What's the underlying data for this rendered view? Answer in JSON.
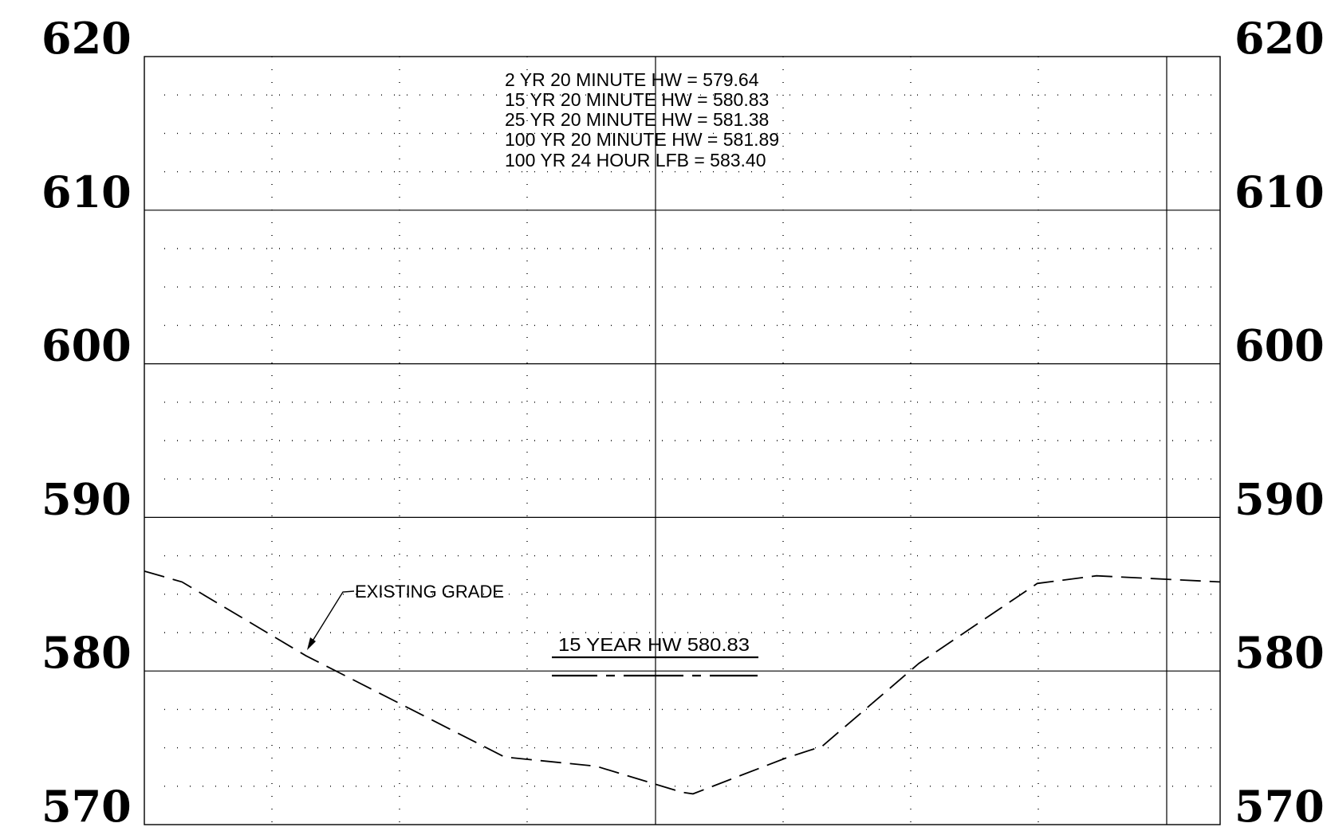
{
  "elevation_labels": [
    "620",
    "610",
    "600",
    "590",
    "580",
    "570"
  ],
  "headwater_notes": [
    "2 YR 20 MINUTE HW = 579.64",
    "15 YR 20 MINUTE HW = 580.83",
    "25 YR 20 MINUTE HW = 581.38",
    "100 YR 20 MINUTE HW = 581.89",
    "100 YR 24 HOUR LFB = 583.40"
  ],
  "profile_label": "EXISTING GRADE",
  "hw_label": "15 YEAR HW 580.83",
  "hw_elevation": 580.83,
  "elevation_range": [
    570,
    620
  ],
  "existing_grade_profile": [
    [
      0,
      586.5
    ],
    [
      0.035,
      585.8
    ],
    [
      0.15,
      581.0
    ],
    [
      0.335,
      574.4
    ],
    [
      0.42,
      573.8
    ],
    [
      0.5,
      572.1
    ],
    [
      0.51,
      572.0
    ],
    [
      0.595,
      574.3
    ],
    [
      0.63,
      575.1
    ],
    [
      0.72,
      580.5
    ],
    [
      0.83,
      585.7
    ],
    [
      0.885,
      586.2
    ],
    [
      1.0,
      585.8
    ]
  ]
}
